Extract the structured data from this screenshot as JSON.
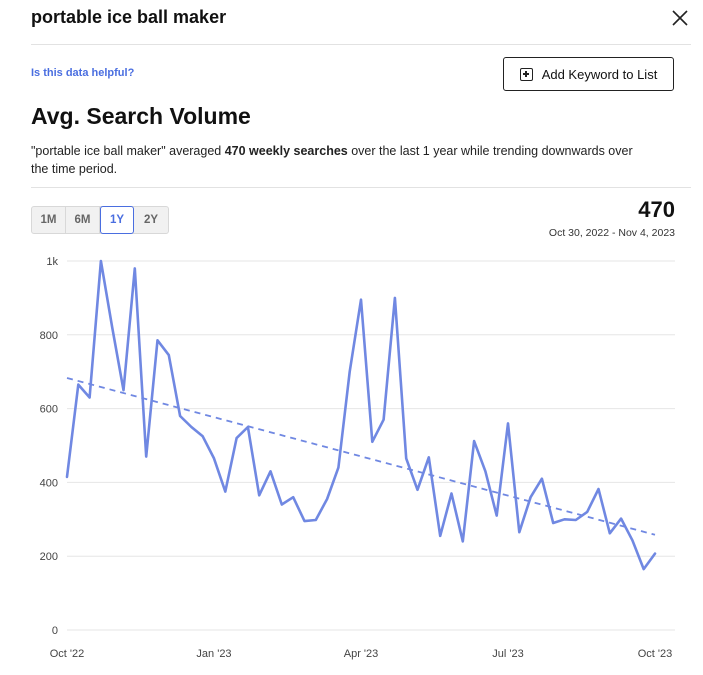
{
  "header": {
    "title": "portable ice ball maker"
  },
  "helpful_link": "Is this data helpful?",
  "add_keyword_label": "Add Keyword to List",
  "section_title": "Avg. Search Volume",
  "description": {
    "keyword": "\"portable ice ball maker\"",
    "averaged": " averaged ",
    "value": "470 weekly searches",
    "rest": " over the last 1 year while trending downwards over the time period."
  },
  "ranges": [
    "1M",
    "6M",
    "1Y",
    "2Y"
  ],
  "active_range": "1Y",
  "summary": {
    "value": "470",
    "date_range": "Oct 30, 2022 - Nov 4, 2023"
  },
  "colors": {
    "accent": "#4a6ee0",
    "line": "#7088e2"
  },
  "chart_data": {
    "type": "line",
    "title": "",
    "xlabel": "",
    "ylabel": "",
    "ylim": [
      0,
      1000
    ],
    "y_ticks": [
      0,
      200,
      400,
      600,
      800,
      1000
    ],
    "y_tick_labels": [
      "0",
      "200",
      "400",
      "600",
      "800",
      "1k"
    ],
    "x_ticks": [
      {
        "label": "Oct '22",
        "week": 0
      },
      {
        "label": "Jan '23",
        "week": 13
      },
      {
        "label": "Apr '23",
        "week": 26
      },
      {
        "label": "Jul '23",
        "week": 39
      },
      {
        "label": "Oct '23",
        "week": 52
      }
    ],
    "grid": true,
    "series": [
      {
        "values": [
          415,
          665,
          630,
          1000,
          820,
          650,
          980,
          470,
          785,
          745,
          580,
          550,
          525,
          465,
          375,
          520,
          550,
          365,
          430,
          340,
          360,
          295,
          298,
          355,
          440,
          700,
          895,
          510,
          570,
          900,
          465,
          380,
          468,
          255,
          370,
          240,
          512,
          430,
          310,
          560,
          265,
          360,
          410,
          290,
          300,
          298,
          320,
          382,
          262,
          302,
          243,
          165,
          207
        ]
      }
    ],
    "trend": {
      "start": 683,
      "end": 258
    }
  }
}
